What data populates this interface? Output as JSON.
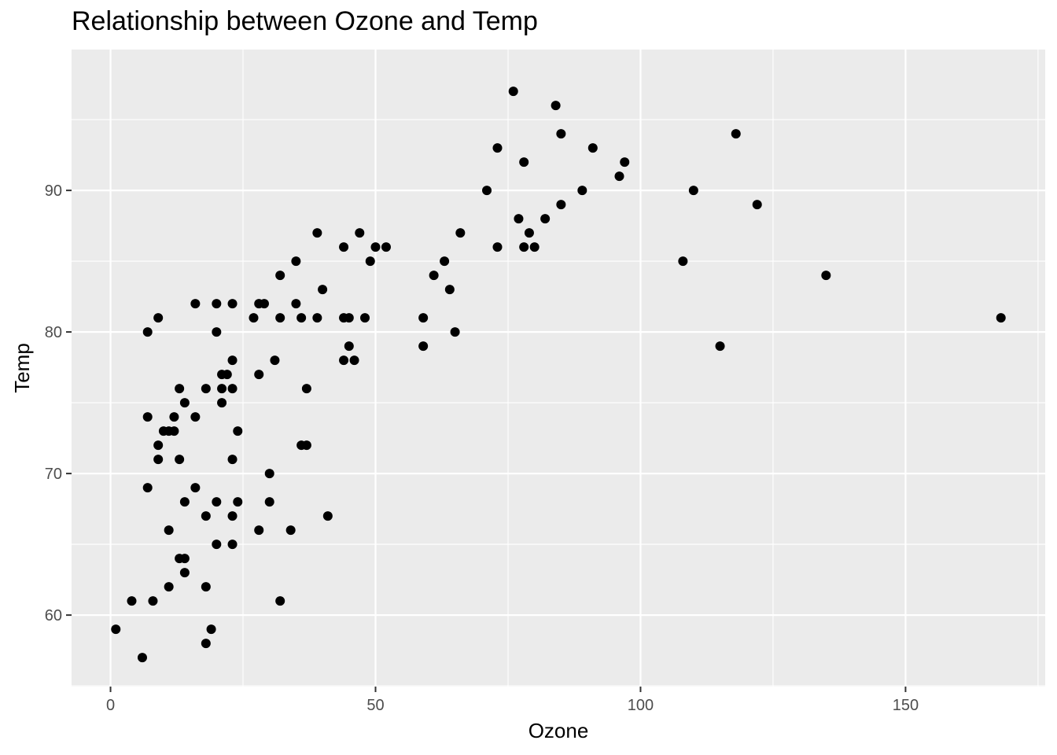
{
  "chart_data": {
    "type": "scatter",
    "title": "Relationship between Ozone and Temp",
    "xlabel": "Ozone",
    "ylabel": "Temp",
    "xlim": [
      -7.35,
      176.35
    ],
    "ylim": [
      54.95,
      99.95
    ],
    "x_ticks": [
      0,
      50,
      100,
      150
    ],
    "x_minor_ticks": [
      25,
      75,
      125,
      175
    ],
    "y_ticks": [
      60,
      70,
      80,
      90
    ],
    "y_minor_ticks": [
      55,
      65,
      75,
      85,
      95
    ],
    "x_tick_labels": [
      "0",
      "50",
      "100",
      "150"
    ],
    "y_tick_labels": [
      "60",
      "70",
      "80",
      "90"
    ],
    "grid": true,
    "panel_background": "#ebebeb",
    "grid_color": "#ffffff",
    "point_color": "#000000",
    "series": [
      {
        "x": [
          1,
          4,
          6,
          7,
          7,
          7,
          8,
          9,
          9,
          9,
          10,
          11,
          11,
          11,
          12,
          12,
          13,
          13,
          13,
          14,
          14,
          14,
          14,
          16,
          16,
          16,
          18,
          18,
          18,
          18,
          19,
          20,
          20,
          20,
          20,
          21,
          21,
          21,
          22,
          23,
          23,
          23,
          23,
          23,
          23,
          24,
          24,
          27,
          28,
          28,
          28,
          29,
          30,
          30,
          31,
          32,
          32,
          32,
          34,
          35,
          35,
          36,
          36,
          37,
          37,
          39,
          39,
          40,
          41,
          44,
          44,
          44,
          45,
          45,
          46,
          47,
          48,
          49,
          50,
          52,
          59,
          59,
          61,
          63,
          64,
          65,
          66,
          71,
          73,
          73,
          76,
          77,
          78,
          78,
          79,
          80,
          82,
          84,
          85,
          85,
          89,
          91,
          96,
          97,
          108,
          110,
          115,
          118,
          122,
          135,
          168
        ],
        "y": [
          59,
          61,
          57,
          74,
          69,
          80,
          61,
          81,
          72,
          71,
          73,
          62,
          66,
          73,
          73,
          74,
          76,
          71,
          64,
          75,
          68,
          63,
          64,
          82,
          74,
          69,
          76,
          67,
          62,
          58,
          59,
          82,
          80,
          68,
          65,
          77,
          76,
          75,
          77,
          82,
          78,
          76,
          71,
          67,
          65,
          73,
          68,
          81,
          82,
          77,
          66,
          82,
          70,
          68,
          78,
          84,
          81,
          61,
          66,
          85,
          82,
          81,
          72,
          76,
          72,
          87,
          81,
          83,
          67,
          86,
          81,
          78,
          81,
          79,
          78,
          87,
          81,
          85,
          86,
          86,
          81,
          79,
          84,
          85,
          83,
          80,
          87,
          90,
          93,
          86,
          97,
          88,
          92,
          86,
          87,
          86,
          88,
          96,
          94,
          89,
          90,
          93,
          91,
          92,
          85,
          90,
          79,
          94,
          89,
          84,
          81
        ]
      }
    ]
  }
}
